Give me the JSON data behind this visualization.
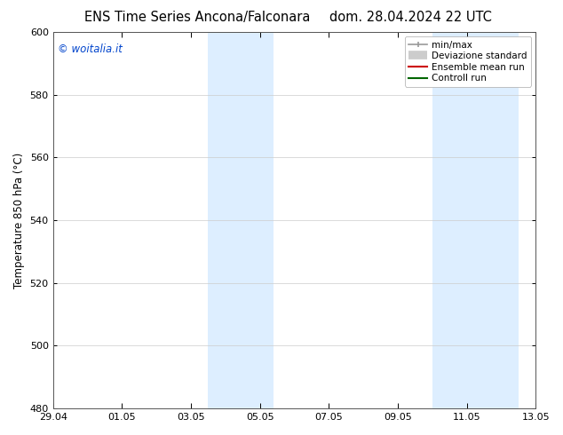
{
  "title_left": "ENS Time Series Ancona/Falconara",
  "title_right": "dom. 28.04.2024 22 UTC",
  "ylabel": "Temperature 850 hPa (°C)",
  "ylim": [
    480,
    600
  ],
  "yticks": [
    480,
    500,
    520,
    540,
    560,
    580,
    600
  ],
  "xtick_labels": [
    "29.04",
    "01.05",
    "03.05",
    "05.05",
    "07.05",
    "09.05",
    "11.05",
    "13.05"
  ],
  "xtick_positions": [
    0,
    2,
    4,
    6,
    8,
    10,
    12,
    14
  ],
  "xlim": [
    0,
    14
  ],
  "bg_color": "#ffffff",
  "plot_bg_color": "#ffffff",
  "shade_bands": [
    {
      "x_start": 4.5,
      "x_end": 6.4,
      "color": "#ddeeff"
    },
    {
      "x_start": 11.0,
      "x_end": 13.5,
      "color": "#ddeeff"
    }
  ],
  "watermark_text": "© woitalia.it",
  "watermark_color": "#0044cc",
  "legend_entries": [
    {
      "label": "min/max",
      "color": "#999999",
      "lw": 1.2
    },
    {
      "label": "Deviazione standard",
      "color": "#cccccc",
      "lw": 7
    },
    {
      "label": "Ensemble mean run",
      "color": "#cc0000",
      "lw": 1.5
    },
    {
      "label": "Controll run",
      "color": "#006600",
      "lw": 1.5
    }
  ],
  "title_fontsize": 10.5,
  "axis_label_fontsize": 8.5,
  "tick_fontsize": 8,
  "legend_fontsize": 7.5,
  "watermark_fontsize": 8.5
}
